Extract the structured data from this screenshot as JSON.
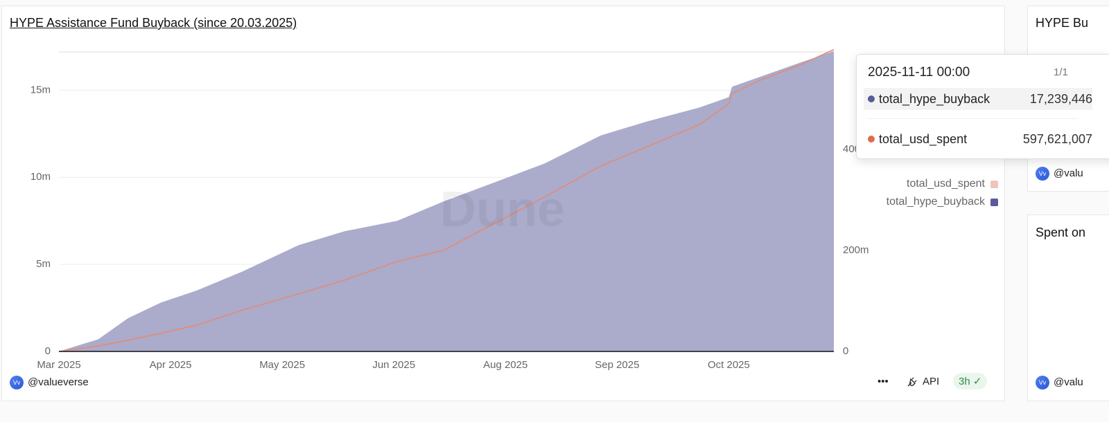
{
  "chart_data": {
    "type": "area",
    "title": "HYPE Assistance Fund Buyback (since 20.03.2025)",
    "watermark": "Dune",
    "x": [
      "2025-03-20",
      "2025-04-01",
      "2025-04-10",
      "2025-04-20",
      "2025-05-01",
      "2025-05-15",
      "2025-06-01",
      "2025-06-15",
      "2025-07-01",
      "2025-07-15",
      "2025-08-01",
      "2025-08-15",
      "2025-09-01",
      "2025-09-15",
      "2025-10-01",
      "2025-10-10",
      "2025-10-11",
      "2025-10-20",
      "2025-11-01",
      "2025-11-11"
    ],
    "series": [
      {
        "name": "total_hype_buyback",
        "color": "#5a5a9c",
        "fill": "#a9a9cb",
        "axis": "y",
        "values": [
          0,
          700000,
          1900000,
          2800000,
          3500000,
          4600000,
          6100000,
          6900000,
          7500000,
          8600000,
          9800000,
          10800000,
          12400000,
          13200000,
          14000000,
          14600000,
          15200000,
          15800000,
          16600000,
          17239446
        ]
      },
      {
        "name": "total_usd_spent",
        "color": "#e28c72",
        "legend_color": "#f0c4b8",
        "axis": "y2",
        "values": [
          0,
          11000000,
          22000000,
          36000000,
          52000000,
          82000000,
          114000000,
          141000000,
          178000000,
          200000000,
          258000000,
          306000000,
          367000000,
          405000000,
          449000000,
          490000000,
          511000000,
          538000000,
          568000000,
          597621007
        ]
      }
    ],
    "xlim": [
      "2025-03-20",
      "2025-11-11"
    ],
    "xticks": [
      {
        "value": "2025-03-20",
        "label": "Mar 2025"
      },
      {
        "value": "2025-04-23",
        "label": "Apr 2025"
      },
      {
        "value": "2025-05-27",
        "label": "May 2025"
      },
      {
        "value": "2025-06-30",
        "label": "Jun 2025"
      },
      {
        "value": "2025-08-03",
        "label": "Aug 2025"
      },
      {
        "value": "2025-09-06",
        "label": "Sep 2025"
      },
      {
        "value": "2025-10-10",
        "label": "Oct 2025"
      }
    ],
    "ylim": [
      0,
      17200000
    ],
    "yticks": [
      0,
      {
        "value": 5000000,
        "label": "5m"
      },
      {
        "value": 10000000,
        "label": "10m"
      },
      {
        "value": 15000000,
        "label": "15m"
      }
    ],
    "y2lim": [
      0,
      593000000
    ],
    "y2ticks": [
      0,
      {
        "value": 200000000,
        "label": "200m"
      },
      {
        "value": 400000000,
        "label": "400m"
      }
    ],
    "grid": true
  },
  "tooltip": {
    "title": "2025-11-11 00:00",
    "page": "1/1",
    "rows": [
      {
        "name": "total_hype_buyback",
        "value": "17,239,446"
      },
      {
        "name": "total_usd_spent",
        "value": "597,621,007"
      }
    ]
  },
  "footer": {
    "author": "@valueverse",
    "api": "API",
    "age": "3h"
  },
  "side_widgets": [
    {
      "title": "HYPE Bu",
      "author": "@valu"
    },
    {
      "title": "Spent on",
      "author": "@valu"
    }
  ]
}
